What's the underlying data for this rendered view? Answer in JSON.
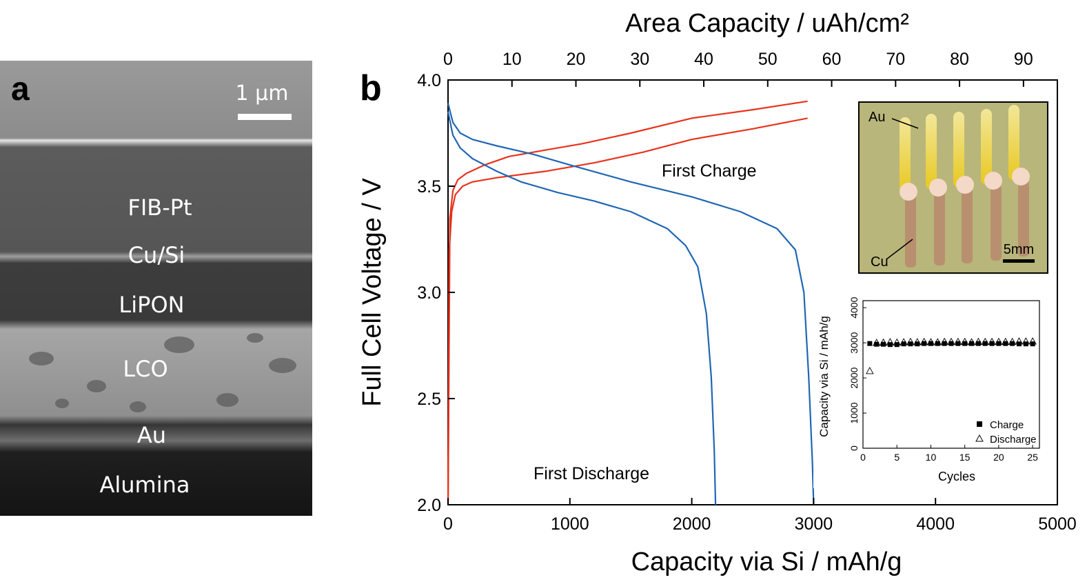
{
  "panel_a": {
    "letter": "a",
    "scale_bar_label": "1 µm",
    "layers": [
      "FIB-Pt",
      "Cu/Si",
      "LiPON",
      "LCO",
      "Au",
      "Alumina"
    ]
  },
  "panel_b": {
    "letter": "b",
    "inset_photo": {
      "labels": [
        "Au",
        "Cu",
        "5mm"
      ]
    }
  },
  "chart_data": [
    {
      "type": "line",
      "xlabel": "Capacity via Si / mAh/g",
      "ylabel": "Full Cell Voltage / V",
      "top_xlabel": "Area Capacity / uAh/cm²",
      "xlim": [
        0,
        5000
      ],
      "ylim": [
        2.0,
        4.0
      ],
      "x_ticks": [
        "0",
        "1000",
        "2000",
        "3000",
        "4000",
        "5000"
      ],
      "y_ticks": [
        "2.0",
        "2.5",
        "3.0",
        "3.5",
        "4.0"
      ],
      "top_ticks": [
        "0",
        "10",
        "20",
        "30",
        "40",
        "50",
        "60",
        "70",
        "80",
        "90"
      ],
      "top_tick_values": [
        0,
        10,
        20,
        30,
        40,
        50,
        60,
        70,
        80,
        90
      ],
      "top_axis_factor": 0.01906,
      "grid": false,
      "annotations": [
        "First Charge",
        "First Discharge"
      ],
      "colors": {
        "charge": "#e8321c",
        "discharge": "#1f66b4"
      },
      "series": [
        {
          "role": "charge",
          "x": [
            0,
            15,
            40,
            80,
            150,
            300,
            500,
            800,
            1100,
            1500,
            2000,
            2500,
            2950
          ],
          "y": [
            2.0,
            3.35,
            3.48,
            3.53,
            3.56,
            3.6,
            3.64,
            3.67,
            3.7,
            3.75,
            3.82,
            3.86,
            3.9
          ]
        },
        {
          "role": "charge",
          "x": [
            0,
            10,
            30,
            60,
            120,
            200,
            400,
            800,
            1200,
            1600,
            2000,
            2500,
            2950
          ],
          "y": [
            2.0,
            3.2,
            3.38,
            3.46,
            3.5,
            3.52,
            3.54,
            3.57,
            3.61,
            3.66,
            3.72,
            3.77,
            3.82
          ]
        },
        {
          "role": "discharge",
          "x": [
            0,
            40,
            100,
            200,
            400,
            700,
            1000,
            1500,
            2000,
            2400,
            2700,
            2850,
            2920,
            2960,
            2990,
            3000
          ],
          "y": [
            3.89,
            3.8,
            3.75,
            3.72,
            3.69,
            3.65,
            3.6,
            3.52,
            3.45,
            3.38,
            3.3,
            3.2,
            3.0,
            2.6,
            2.2,
            2.0
          ]
        },
        {
          "role": "discharge",
          "x": [
            0,
            40,
            100,
            200,
            400,
            600,
            900,
            1200,
            1500,
            1800,
            1950,
            2050,
            2120,
            2160,
            2185,
            2195
          ],
          "y": [
            3.85,
            3.74,
            3.68,
            3.63,
            3.57,
            3.52,
            3.47,
            3.43,
            3.38,
            3.3,
            3.22,
            3.12,
            2.9,
            2.6,
            2.25,
            2.0
          ]
        }
      ]
    },
    {
      "type": "scatter",
      "xlabel": "Cycles",
      "ylabel": "Capacity via Si / mAh/g",
      "xlim": [
        0,
        26
      ],
      "ylim": [
        0,
        4200
      ],
      "x_ticks": [
        "0",
        "5",
        "10",
        "15",
        "20",
        "25"
      ],
      "y_ticks": [
        "0",
        "1000",
        "2000",
        "3000",
        "4000"
      ],
      "legend_position": "bottom-right",
      "series": [
        {
          "name": "Charge",
          "marker": "filled-square",
          "x": [
            1,
            2,
            3,
            4,
            5,
            6,
            7,
            8,
            9,
            10,
            11,
            12,
            13,
            14,
            15,
            16,
            17,
            18,
            19,
            20,
            21,
            22,
            23,
            24,
            25
          ],
          "y": [
            2980,
            2960,
            2960,
            2950,
            2950,
            2970,
            2970,
            2970,
            2980,
            2980,
            2980,
            2980,
            2980,
            2980,
            2980,
            2980,
            2980,
            2980,
            2980,
            2980,
            2980,
            2980,
            2970,
            2970,
            2970
          ]
        },
        {
          "name": "Discharge",
          "marker": "open-triangle",
          "x": [
            1,
            2,
            3,
            4,
            5,
            6,
            7,
            8,
            9,
            10,
            11,
            12,
            13,
            14,
            15,
            16,
            17,
            18,
            19,
            20,
            21,
            22,
            23,
            24,
            25
          ],
          "y": [
            2200,
            3000,
            3010,
            3020,
            3010,
            3020,
            3030,
            3020,
            3030,
            3020,
            3020,
            3030,
            3030,
            3030,
            3030,
            3020,
            3030,
            3030,
            3030,
            3030,
            3030,
            3030,
            3040,
            3040,
            3040
          ]
        }
      ]
    }
  ]
}
